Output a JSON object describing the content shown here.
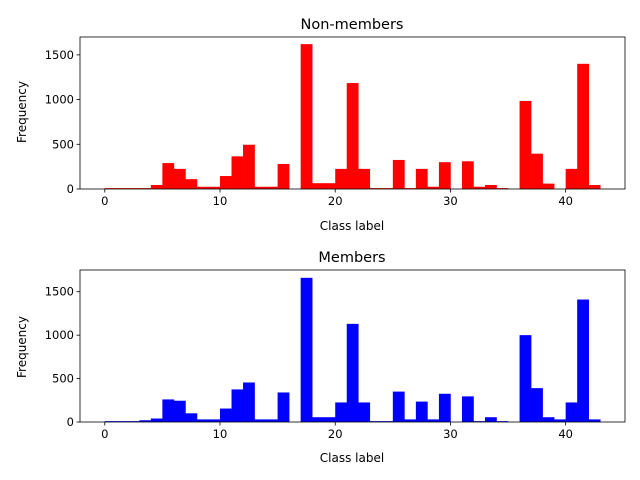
{
  "chart_data": [
    {
      "type": "bar",
      "title": "Non-members",
      "xlabel": "Class label",
      "ylabel": "Frequency",
      "color": "#ff0000",
      "xlim": [
        -2.15,
        45.15
      ],
      "ylim": [
        0,
        1700
      ],
      "xticks": [
        0,
        10,
        20,
        30,
        40
      ],
      "yticks": [
        0,
        500,
        1000,
        1500
      ],
      "bin_width": 1,
      "bins": [
        {
          "x": 0,
          "value": 10
        },
        {
          "x": 1,
          "value": 10
        },
        {
          "x": 2,
          "value": 10
        },
        {
          "x": 3,
          "value": 10
        },
        {
          "x": 4,
          "value": 45
        },
        {
          "x": 5,
          "value": 290
        },
        {
          "x": 6,
          "value": 225
        },
        {
          "x": 7,
          "value": 110
        },
        {
          "x": 8,
          "value": 25
        },
        {
          "x": 9,
          "value": 25
        },
        {
          "x": 10,
          "value": 145
        },
        {
          "x": 11,
          "value": 365
        },
        {
          "x": 12,
          "value": 495
        },
        {
          "x": 13,
          "value": 25
        },
        {
          "x": 14,
          "value": 25
        },
        {
          "x": 15,
          "value": 280
        },
        {
          "x": 17,
          "value": 1620
        },
        {
          "x": 18,
          "value": 65
        },
        {
          "x": 19,
          "value": 65
        },
        {
          "x": 20,
          "value": 225
        },
        {
          "x": 21,
          "value": 1185
        },
        {
          "x": 22,
          "value": 225
        },
        {
          "x": 23,
          "value": 10
        },
        {
          "x": 24,
          "value": 10
        },
        {
          "x": 25,
          "value": 325
        },
        {
          "x": 26,
          "value": 10
        },
        {
          "x": 27,
          "value": 225
        },
        {
          "x": 28,
          "value": 25
        },
        {
          "x": 29,
          "value": 300
        },
        {
          "x": 31,
          "value": 310
        },
        {
          "x": 32,
          "value": 25
        },
        {
          "x": 33,
          "value": 45
        },
        {
          "x": 34,
          "value": 10
        },
        {
          "x": 36,
          "value": 985
        },
        {
          "x": 37,
          "value": 395
        },
        {
          "x": 38,
          "value": 60
        },
        {
          "x": 40,
          "value": 225
        },
        {
          "x": 41,
          "value": 1400
        },
        {
          "x": 42,
          "value": 45
        }
      ]
    },
    {
      "type": "bar",
      "title": "Members",
      "xlabel": "Class label",
      "ylabel": "Frequency",
      "color": "#0000ff",
      "xlim": [
        -2.15,
        45.15
      ],
      "ylim": [
        0,
        1750
      ],
      "xticks": [
        0,
        10,
        20,
        30,
        40
      ],
      "yticks": [
        0,
        500,
        1000,
        1500
      ],
      "bin_width": 1,
      "bins": [
        {
          "x": 0,
          "value": 10
        },
        {
          "x": 1,
          "value": 10
        },
        {
          "x": 2,
          "value": 10
        },
        {
          "x": 3,
          "value": 20
        },
        {
          "x": 4,
          "value": 40
        },
        {
          "x": 5,
          "value": 260
        },
        {
          "x": 6,
          "value": 245
        },
        {
          "x": 7,
          "value": 100
        },
        {
          "x": 8,
          "value": 30
        },
        {
          "x": 9,
          "value": 30
        },
        {
          "x": 10,
          "value": 155
        },
        {
          "x": 11,
          "value": 375
        },
        {
          "x": 12,
          "value": 455
        },
        {
          "x": 13,
          "value": 30
        },
        {
          "x": 14,
          "value": 30
        },
        {
          "x": 15,
          "value": 340
        },
        {
          "x": 17,
          "value": 1660
        },
        {
          "x": 18,
          "value": 55
        },
        {
          "x": 19,
          "value": 55
        },
        {
          "x": 20,
          "value": 225
        },
        {
          "x": 21,
          "value": 1130
        },
        {
          "x": 22,
          "value": 225
        },
        {
          "x": 23,
          "value": 10
        },
        {
          "x": 24,
          "value": 10
        },
        {
          "x": 25,
          "value": 350
        },
        {
          "x": 26,
          "value": 30
        },
        {
          "x": 27,
          "value": 235
        },
        {
          "x": 28,
          "value": 30
        },
        {
          "x": 29,
          "value": 325
        },
        {
          "x": 31,
          "value": 295
        },
        {
          "x": 32,
          "value": 10
        },
        {
          "x": 33,
          "value": 55
        },
        {
          "x": 34,
          "value": 10
        },
        {
          "x": 36,
          "value": 1000
        },
        {
          "x": 37,
          "value": 390
        },
        {
          "x": 38,
          "value": 55
        },
        {
          "x": 39,
          "value": 30
        },
        {
          "x": 40,
          "value": 225
        },
        {
          "x": 41,
          "value": 1410
        },
        {
          "x": 42,
          "value": 30
        }
      ]
    }
  ]
}
